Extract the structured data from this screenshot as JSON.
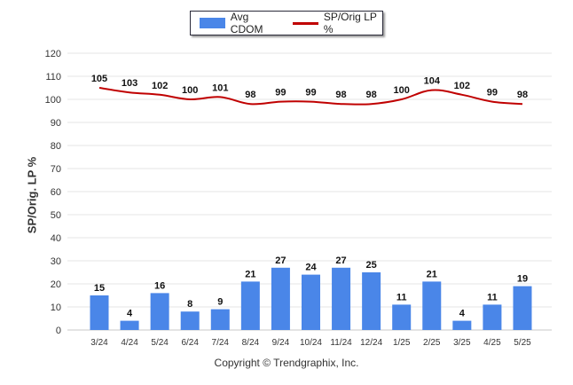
{
  "chart_data": {
    "type": "bar+line",
    "categories": [
      "3/24",
      "4/24",
      "5/24",
      "6/24",
      "7/24",
      "8/24",
      "9/24",
      "10/24",
      "11/24",
      "12/24",
      "1/25",
      "2/25",
      "3/25",
      "4/25",
      "5/25"
    ],
    "series": [
      {
        "name": "Avg CDOM",
        "type": "bar",
        "color": "#4a86e8",
        "values": [
          15,
          4,
          16,
          8,
          9,
          21,
          27,
          24,
          27,
          25,
          11,
          21,
          4,
          11,
          19
        ]
      },
      {
        "name": "SP/Orig LP %",
        "type": "line",
        "color": "#c00000",
        "values": [
          105,
          103,
          102,
          100,
          101,
          98,
          99,
          99,
          98,
          98,
          100,
          104,
          102,
          99,
          98
        ]
      }
    ],
    "ylabel": "SP/Orig. LP %",
    "ylim": [
      0,
      120
    ],
    "yticks": [
      0,
      10,
      20,
      30,
      40,
      50,
      60,
      70,
      80,
      90,
      100,
      110,
      120
    ],
    "grid": true,
    "legend_position": "top-center"
  },
  "legend": {
    "bar_label": "Avg CDOM",
    "line_label": "SP/Orig LP %"
  },
  "footer": {
    "copyright": "Copyright © Trendgraphix, Inc."
  }
}
